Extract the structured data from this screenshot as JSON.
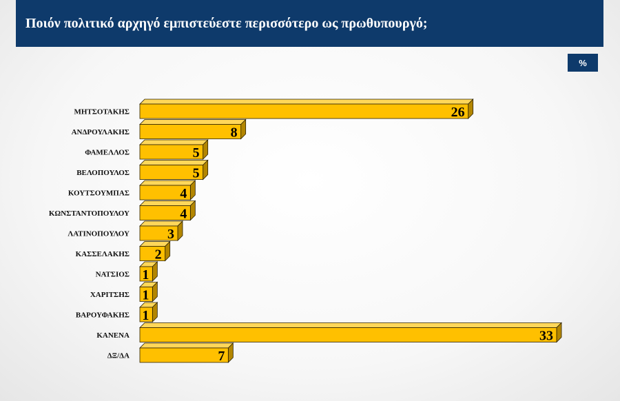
{
  "header": {
    "title": "Ποιόν πολιτικό αρχηγό εμπιστεύεστε περισσότερο ως πρωθυπουργό;"
  },
  "unit_badge": "%",
  "colors": {
    "header_bg": "#0e3a6b",
    "bar_front": "#ffc000",
    "bar_top": "#ffd75a",
    "bar_side": "#b38600",
    "bar_outline": "#2a2000"
  },
  "chart_data": {
    "type": "bar",
    "orientation": "horizontal",
    "categories": [
      "ΜΗΤΣΟΤΑΚΗΣ",
      "ΑΝΔΡΟΥΛΑΚΗΣ",
      "ΦΑΜΕΛΛΟΣ",
      "ΒΕΛΟΠΟΥΛΟΣ",
      "ΚΟΥΤΣΟΥΜΠΑΣ",
      "ΚΩΝΣΤΑΝΤΟΠΟΥΛΟΥ",
      "ΛΑΤΙΝΟΠΟΥΛΟΥ",
      "ΚΑΣΣΕΛΑΚΗΣ",
      "ΝΑΤΣΙΟΣ",
      "ΧΑΡΙΤΣΗΣ",
      "ΒΑΡΟΥΦΑΚΗΣ",
      "ΚΑΝΕΝΑ",
      "ΔΞ/ΔΑ"
    ],
    "values": [
      26,
      8,
      5,
      5,
      4,
      4,
      3,
      2,
      1,
      1,
      1,
      33,
      7
    ],
    "unit": "%",
    "xlim": [
      0,
      33
    ],
    "grid": false,
    "legend": false,
    "style": "3d"
  }
}
